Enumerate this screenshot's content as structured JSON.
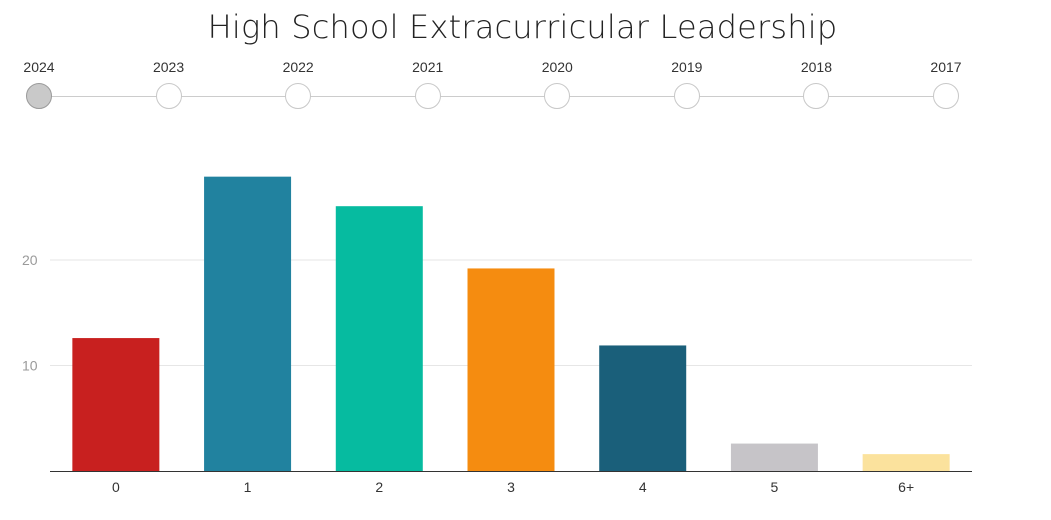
{
  "chart_data": {
    "type": "bar",
    "title": "High School Extracurricular Leadership",
    "xlabel": "",
    "ylabel": "",
    "categories": [
      "0",
      "1",
      "2",
      "3",
      "4",
      "5",
      "6+"
    ],
    "values": [
      12.6,
      27.9,
      25.1,
      19.2,
      11.9,
      2.6,
      1.6
    ],
    "colors": [
      "#c8201f",
      "#21829f",
      "#06bba0",
      "#f58c10",
      "#1a5f7a",
      "#c6c4c8",
      "#fbe29d"
    ],
    "ylim": [
      0,
      30
    ],
    "yticks": [
      10,
      20
    ],
    "grid": true,
    "timeline": {
      "years": [
        "2024",
        "2023",
        "2022",
        "2021",
        "2020",
        "2019",
        "2018",
        "2017"
      ],
      "selected": "2024"
    }
  }
}
